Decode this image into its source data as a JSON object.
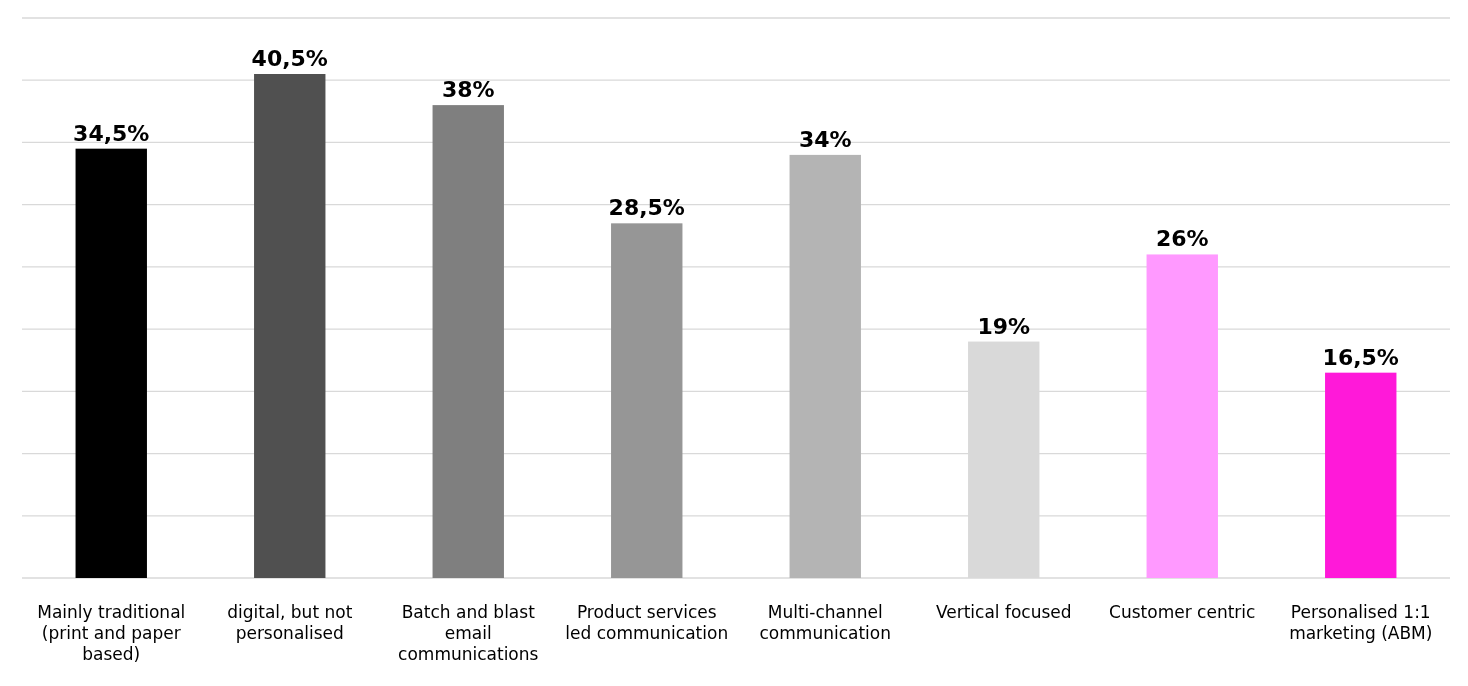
{
  "chart_data": {
    "type": "bar",
    "categories": [
      "Mainly traditional (print and paper based)",
      "digital, but not personalised",
      "Batch and blast email communications",
      "Product services led communication",
      "Multi-channel communication",
      "Vertical focused",
      "Customer centric",
      "Personalised 1:1 marketing (ABM)"
    ],
    "values": [
      34.5,
      40.5,
      38,
      28.5,
      34,
      19,
      26,
      16.5
    ],
    "colors": [
      "#000000",
      "#505050",
      "#7f7f7f",
      "#969696",
      "#b4b4b4",
      "#d9d9d9",
      "#ff99ff",
      "#ff19d9"
    ],
    "value_labels": [
      "34,5%",
      "40,5%",
      "38%",
      "28,5%",
      "34%",
      "19%",
      "26%",
      "16,5%"
    ],
    "ylim": [
      0,
      45
    ],
    "yticks": [
      {
        "value": 0,
        "label": null
      },
      {
        "value": 5,
        "label": null
      },
      {
        "value": 10,
        "label": null
      },
      {
        "value": 15,
        "label": null
      },
      {
        "value": 20,
        "label": null
      },
      {
        "value": 25,
        "label": null
      },
      {
        "value": 30,
        "label": null
      },
      {
        "value": 35,
        "label": null
      },
      {
        "value": 40,
        "label": null
      },
      {
        "value": 45,
        "label": null
      }
    ],
    "grid": "y",
    "tick_labels": "x"
  }
}
